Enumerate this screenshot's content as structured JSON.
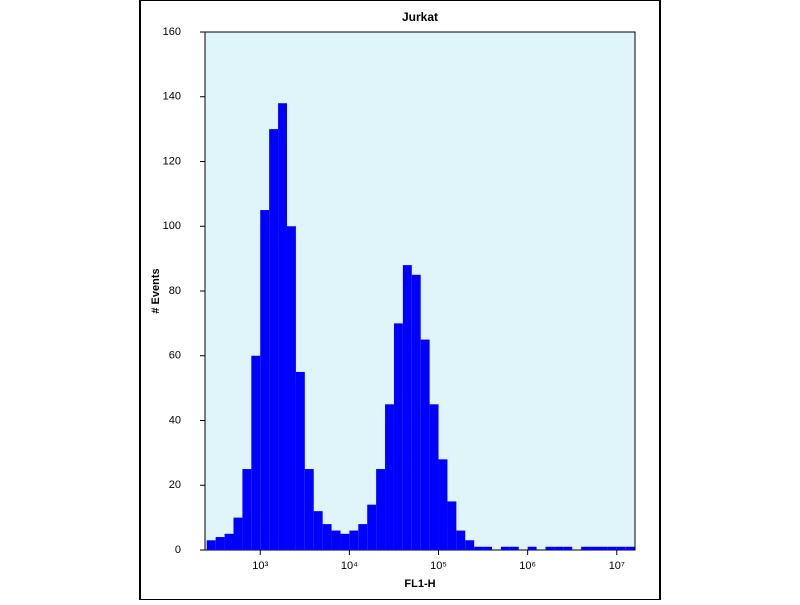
{
  "chart_data": {
    "type": "histogram",
    "title": "Jurkat",
    "x_label": "FL1-H",
    "y_label": "# Events",
    "x_scale": "log",
    "color": "#0000ff",
    "background": "#e0f5fa",
    "bins": [
      251,
      316,
      398,
      501,
      631,
      794,
      1000,
      1259,
      1585,
      1995,
      2512,
      3162,
      3981,
      5012,
      6310,
      7943,
      10000,
      12589,
      15849,
      19953,
      25119,
      31623,
      39811,
      50119,
      63096,
      79433,
      100000,
      125893,
      158489,
      199526,
      251189,
      316228,
      398107,
      501187,
      630957,
      794328,
      1000000,
      1258925,
      1584893,
      1995262,
      2511886,
      3162278,
      3981072,
      5011872,
      6309573,
      7943282,
      10000000,
      12589254,
      15848932
    ],
    "counts": [
      3,
      4,
      5,
      10,
      25,
      60,
      105,
      130,
      138,
      100,
      55,
      25,
      12,
      8,
      6,
      5,
      6,
      8,
      14,
      25,
      45,
      70,
      88,
      85,
      65,
      45,
      28,
      15,
      6,
      3,
      1,
      1,
      0,
      1,
      1,
      0,
      1,
      0,
      1,
      1,
      1,
      0,
      1,
      1,
      1,
      1,
      1,
      1
    ],
    "xlim": [
      240,
      16000000
    ],
    "xticks": [
      {
        "value": 1000,
        "label": "10³"
      },
      {
        "value": 10000,
        "label": "10⁴"
      },
      {
        "value": 100000,
        "label": "10⁵"
      },
      {
        "value": 1000000,
        "label": "10⁶"
      },
      {
        "value": 10000000,
        "label": "10⁷"
      }
    ],
    "ylim": [
      0,
      160
    ],
    "yticks": [
      0,
      20,
      40,
      60,
      80,
      100,
      120,
      140,
      160
    ]
  }
}
